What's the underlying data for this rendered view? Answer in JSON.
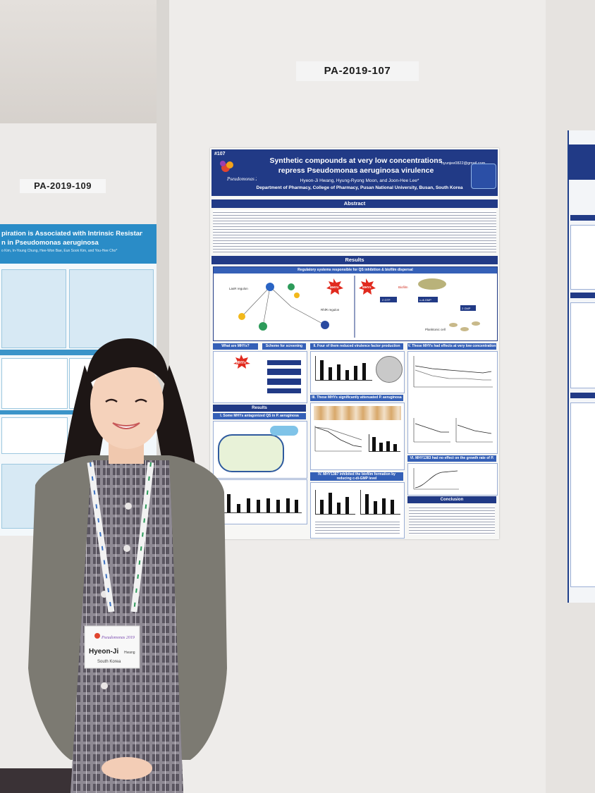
{
  "scene": {
    "left_board": {
      "number": "PA-2019-109",
      "title_line_1": "piration is Associated with Intrinsic Resistance to",
      "title_line_2": "n in Pseudomonas aeruginosa",
      "authors": "o Kim, In-Young Chung, Hee-Won Bae, Eun Sook Kim, and You-Hee Cho*"
    },
    "main_board": {
      "number": "PA-2019-107"
    },
    "poster": {
      "id": "#107",
      "email": "hyunjee0822@gmail.com",
      "title_line_1": "Synthetic compounds at very low concentrations",
      "title_line_2": "repress Pseudomonas aeruginosa virulence",
      "authors": "Hyeon-Ji Hwang, Hyung-Ryong Moon, and Joon-Hee Lee*",
      "affiliation": "Department of Pharmacy, College of Pharmacy, Pusan National University, Busan, South Korea",
      "logo_text": "Pseudomonas 2019",
      "sections": {
        "abstract": "Abstract",
        "results": "Results",
        "results_2": "Results",
        "conclusion": "Conclusion",
        "regulatory_title": "Regulatory systems responsible for QS inhibition & biofilm dispersal"
      },
      "subheads": {
        "what_are": "What are MHYs?",
        "scheme": "Scheme for screening",
        "fig1": "I. Some MHYs antagonized QS in P. aeruginosa",
        "fig2": "II. Four of them reduced virulence factor production",
        "fig3": "III. These MHYs significantly attenuated P. aeruginosa",
        "fig4": "IV. MHY1387 inhibited the biofilm formation by reducing c-di-GMP level",
        "fig5": "V. These MHYs had effects at very low concentration",
        "fig6": "VI. MHY1383 had no effect on the growth rate of P. aeruginosa"
      },
      "badges": [
        "MHYs",
        "MHYs",
        "MHYs"
      ],
      "schematic_labels": [
        "LasR regulon",
        "RhlR regulon",
        "Planktonic cell",
        "Biofilm",
        "2 GTP",
        "c-di-GMP",
        "2 GMP"
      ]
    },
    "badge": {
      "logo_text": "Pseudomonas 2019",
      "name_1": "Hyeon-Ji",
      "name_2": "Hwang",
      "country": "South Korea"
    },
    "colors": {
      "poster_navy": "#213a86",
      "left_poster_blue": "#2a8cc7",
      "cardigan": "#7c7a72",
      "dress_plaid": "#5a5560"
    }
  }
}
